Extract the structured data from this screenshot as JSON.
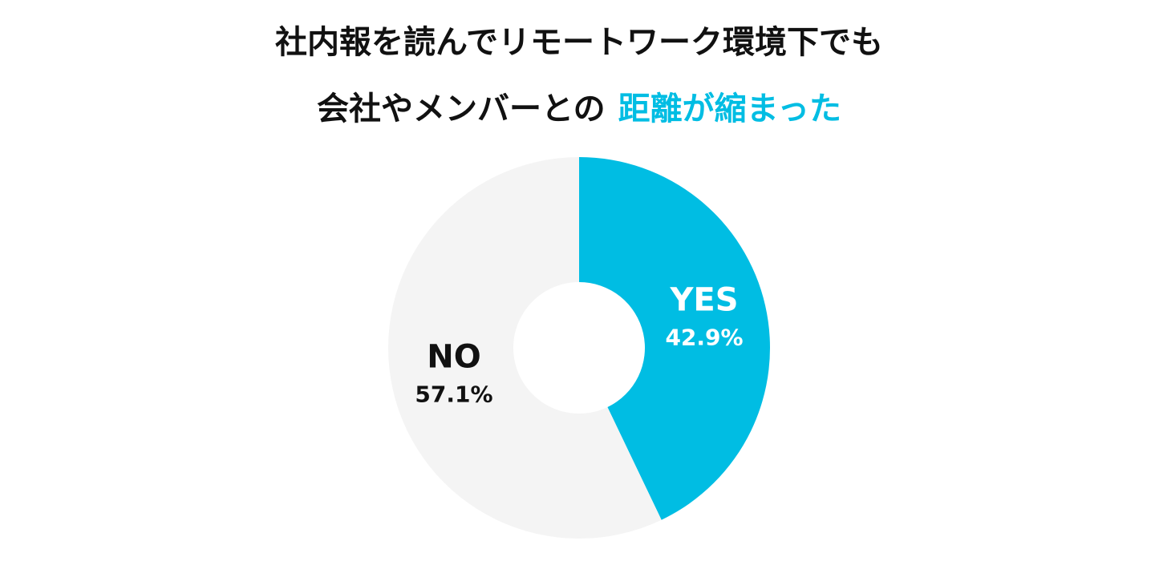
{
  "chart_data": {
    "type": "donut",
    "title_lines": [
      "社内報を読んでリモートワーク環境下でも",
      "会社やメンバーとの"
    ],
    "title_highlight": "距離が縮まった",
    "highlight_color": "#00bde3",
    "categories": [
      "YES",
      "NO"
    ],
    "values": [
      42.9,
      57.1
    ],
    "value_labels": [
      "42.9%",
      "57.1%"
    ],
    "colors": [
      "#00bde3",
      "#f4f4f4"
    ],
    "label_colors": [
      "#ffffff",
      "#111111"
    ]
  }
}
